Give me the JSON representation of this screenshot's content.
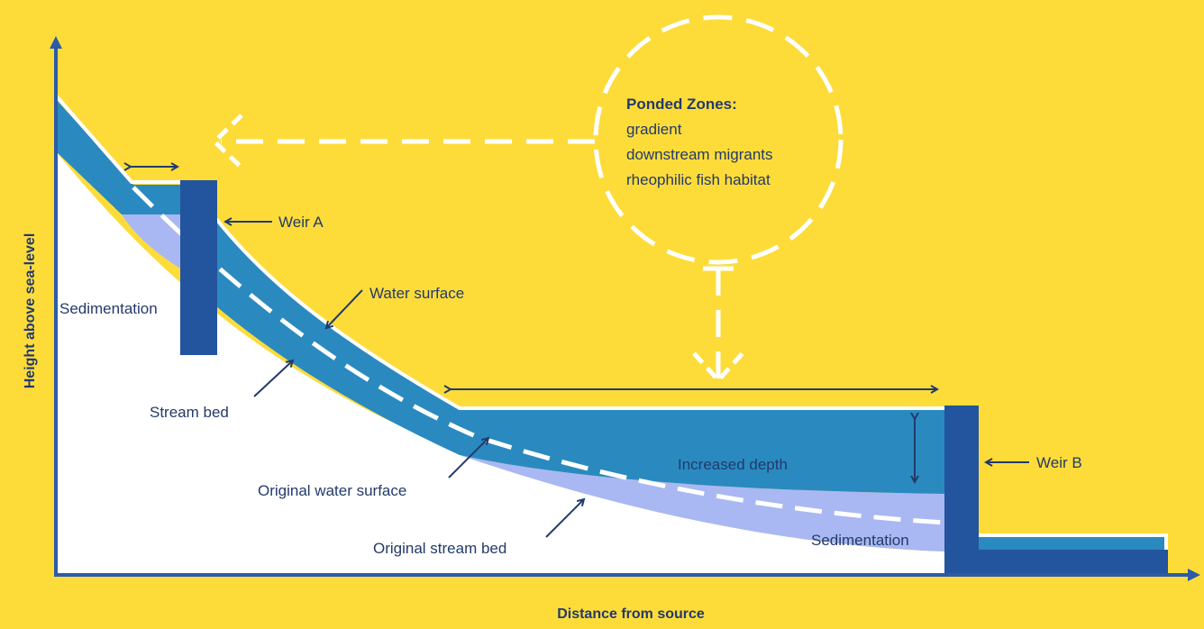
{
  "colors": {
    "background": "#FDDC3A",
    "water": "#2A8AC0",
    "sediment": "#A9B8F2",
    "weir": "#23549E",
    "ground": "#FFFFFF",
    "ink": "#233A6B",
    "axis": "#2C5BA8"
  },
  "axes": {
    "y_label": "Height above sea-level",
    "x_label": "Distance from source"
  },
  "labels": {
    "weir_a": "Weir A",
    "weir_b": "Weir B",
    "sedimentation_left": "Sedimentation",
    "sedimentation_right": "Sedimentation",
    "water_surface": "Water surface",
    "stream_bed": "Stream bed",
    "original_water_surface": "Original water surface",
    "original_stream_bed": "Original stream bed",
    "increased_depth": "Increased depth"
  },
  "ponded_zones": {
    "title": "Ponded Zones:",
    "items": [
      "gradient",
      "downstream migrants",
      "rheophilic fish habitat"
    ]
  }
}
